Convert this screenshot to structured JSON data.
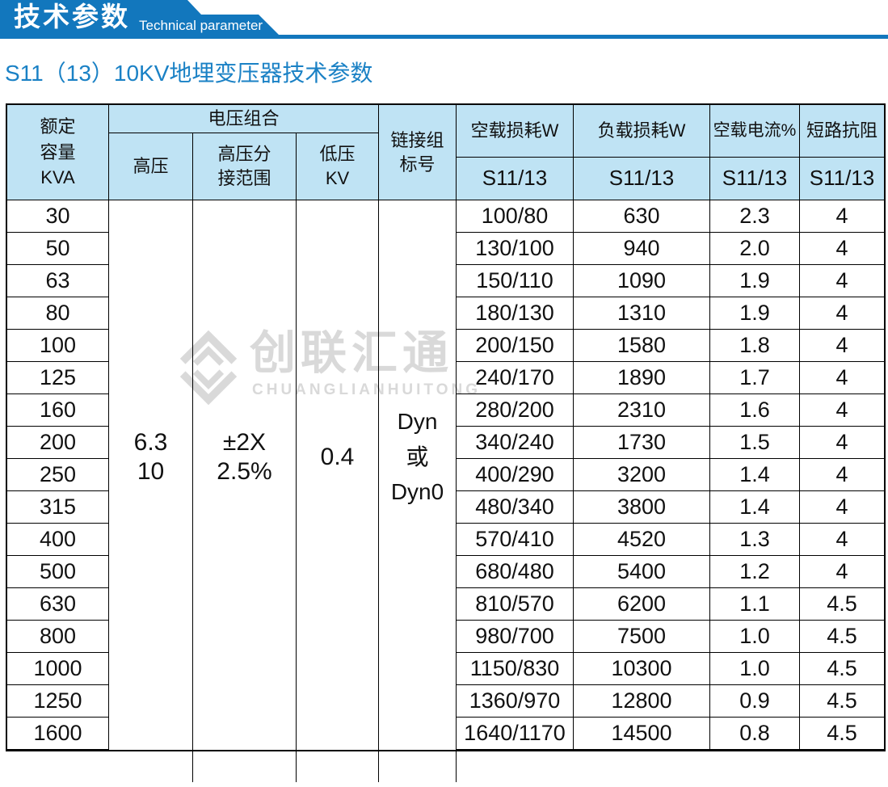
{
  "banner": {
    "title_cn": "技术参数",
    "title_en": "Technical parameter"
  },
  "subtitle": "S11（13）10KV地埋变压器技术参数",
  "colors": {
    "banner_blue": "#1277bd",
    "subtitle_blue": "#1a81c5",
    "header_bg": "#bfe3f4",
    "border": "#000000",
    "watermark_gray": "#d9d9d9"
  },
  "watermark": {
    "logo": "diamond-logo",
    "text_cn": "创联汇通",
    "text_en": "CHUANGLIANHUITONG"
  },
  "table": {
    "headers": {
      "capacity": [
        "额定",
        "容量",
        "KVA"
      ],
      "voltage_group": "电压组合",
      "high_voltage": "高压",
      "tap_range": [
        "高压分",
        "接范围"
      ],
      "low_voltage": [
        "低压",
        "KV"
      ],
      "connection": [
        "链接组",
        "标号"
      ],
      "no_load_loss": "空载损耗W",
      "load_loss": "负载损耗W",
      "no_load_current": "空载电流%",
      "impedance": "短路抗阻",
      "model": "S11/13"
    },
    "merged": {
      "high_voltage": [
        "6.3",
        "10"
      ],
      "tap_range": [
        "±2X",
        "2.5%"
      ],
      "low_voltage": "0.4",
      "connection": [
        "Dyn",
        "或",
        "Dyn0"
      ]
    },
    "rows": [
      {
        "capacity": "30",
        "no_load_loss": "100/80",
        "load_loss": "630",
        "no_load_current": "2.3",
        "impedance": "4"
      },
      {
        "capacity": "50",
        "no_load_loss": "130/100",
        "load_loss": "940",
        "no_load_current": "2.0",
        "impedance": "4"
      },
      {
        "capacity": "63",
        "no_load_loss": "150/110",
        "load_loss": "1090",
        "no_load_current": "1.9",
        "impedance": "4"
      },
      {
        "capacity": "80",
        "no_load_loss": "180/130",
        "load_loss": "1310",
        "no_load_current": "1.9",
        "impedance": "4"
      },
      {
        "capacity": "100",
        "no_load_loss": "200/150",
        "load_loss": "1580",
        "no_load_current": "1.8",
        "impedance": "4"
      },
      {
        "capacity": "125",
        "no_load_loss": "240/170",
        "load_loss": "1890",
        "no_load_current": "1.7",
        "impedance": "4"
      },
      {
        "capacity": "160",
        "no_load_loss": "280/200",
        "load_loss": "2310",
        "no_load_current": "1.6",
        "impedance": "4"
      },
      {
        "capacity": "200",
        "no_load_loss": "340/240",
        "load_loss": "1730",
        "no_load_current": "1.5",
        "impedance": "4"
      },
      {
        "capacity": "250",
        "no_load_loss": "400/290",
        "load_loss": "3200",
        "no_load_current": "1.4",
        "impedance": "4"
      },
      {
        "capacity": "315",
        "no_load_loss": "480/340",
        "load_loss": "3800",
        "no_load_current": "1.4",
        "impedance": "4"
      },
      {
        "capacity": "400",
        "no_load_loss": "570/410",
        "load_loss": "4520",
        "no_load_current": "1.3",
        "impedance": "4"
      },
      {
        "capacity": "500",
        "no_load_loss": "680/480",
        "load_loss": "5400",
        "no_load_current": "1.2",
        "impedance": "4"
      },
      {
        "capacity": "630",
        "no_load_loss": "810/570",
        "load_loss": "6200",
        "no_load_current": "1.1",
        "impedance": "4.5"
      },
      {
        "capacity": "800",
        "no_load_loss": "980/700",
        "load_loss": "7500",
        "no_load_current": "1.0",
        "impedance": "4.5"
      },
      {
        "capacity": "1000",
        "no_load_loss": "1150/830",
        "load_loss": "10300",
        "no_load_current": "1.0",
        "impedance": "4.5"
      },
      {
        "capacity": "1250",
        "no_load_loss": "1360/970",
        "load_loss": "12800",
        "no_load_current": "0.9",
        "impedance": "4.5"
      },
      {
        "capacity": "1600",
        "no_load_loss": "1640/1170",
        "load_loss": "14500",
        "no_load_current": "0.8",
        "impedance": "4.5"
      }
    ]
  }
}
